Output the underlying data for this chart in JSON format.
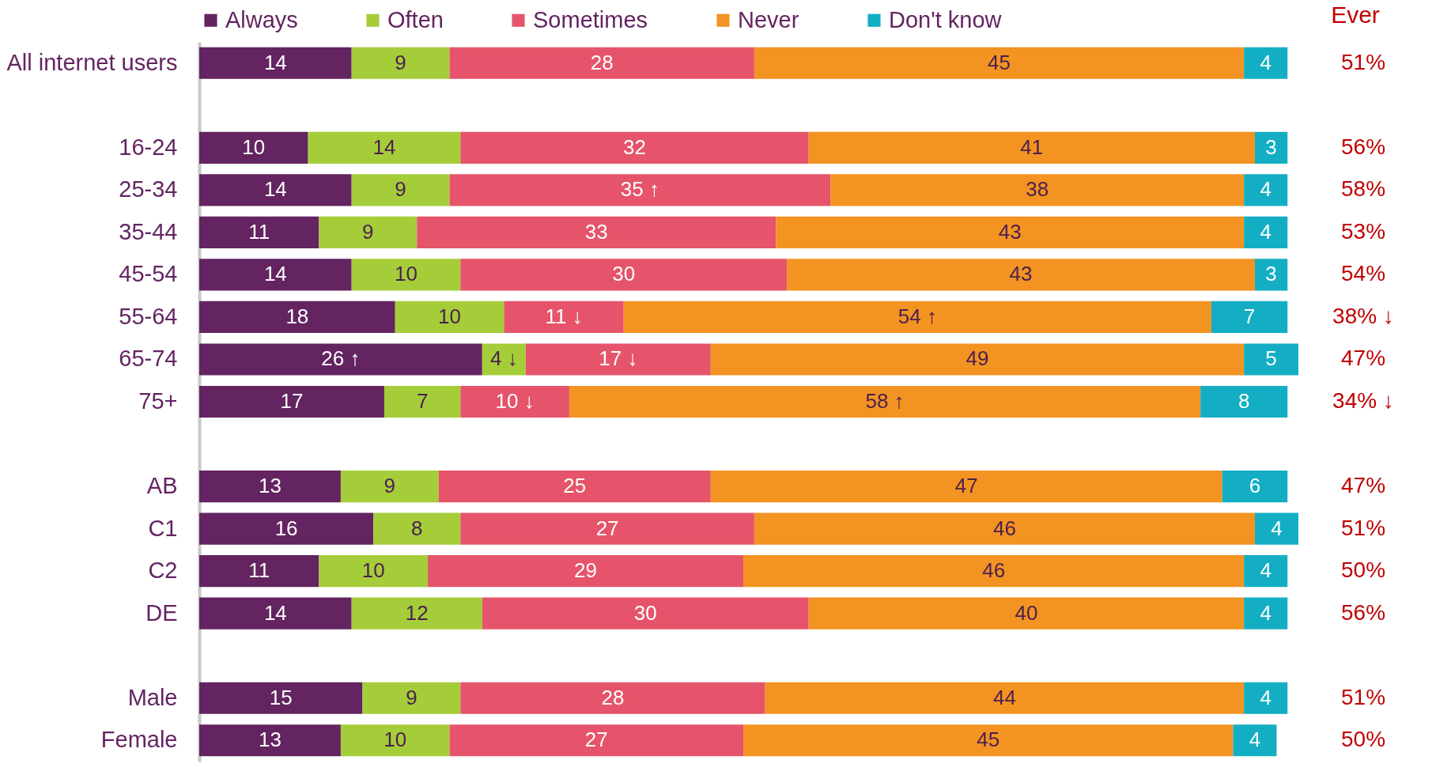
{
  "chart_data": {
    "type": "bar",
    "orientation": "horizontal",
    "stacked": true,
    "legend": "top",
    "tick_labels": "y",
    "xlim": [
      0,
      101
    ],
    "categories": [
      "All internet users",
      null,
      "16-24",
      "25-34",
      "35-44",
      "45-54",
      "55-64",
      "65-74",
      "75+",
      null,
      "AB",
      "C1",
      "C2",
      "DE",
      null,
      "Male",
      "Female"
    ],
    "series": [
      {
        "name": "Always",
        "color": "#632461",
        "values": [
          14,
          null,
          10,
          14,
          11,
          14,
          18,
          26,
          17,
          null,
          13,
          16,
          11,
          14,
          null,
          15,
          13
        ],
        "value_labels": [
          "14",
          null,
          "10",
          "14",
          "11",
          "14",
          "18",
          "26 ↑",
          "17",
          null,
          "13",
          "16",
          "11",
          "14",
          null,
          "15",
          "13"
        ]
      },
      {
        "name": "Often",
        "color": "#a5cd39",
        "values": [
          9,
          null,
          14,
          9,
          9,
          10,
          10,
          4,
          7,
          null,
          9,
          8,
          10,
          12,
          null,
          9,
          10
        ],
        "value_labels": [
          "9",
          null,
          "14",
          "9",
          "9",
          "10",
          "10",
          "4 ↓",
          "7",
          null,
          "9",
          "8",
          "10",
          "12",
          null,
          "9",
          "10"
        ]
      },
      {
        "name": "Sometimes",
        "color": "#e5546a",
        "values": [
          28,
          null,
          32,
          35,
          33,
          30,
          11,
          17,
          10,
          null,
          25,
          27,
          29,
          30,
          null,
          28,
          27
        ],
        "value_labels": [
          "28",
          null,
          "32",
          "35 ↑",
          "33",
          "30",
          "11 ↓",
          "17 ↓",
          "10 ↓",
          null,
          "25",
          "27",
          "29",
          "30",
          null,
          "28",
          "27"
        ]
      },
      {
        "name": "Never",
        "color": "#f39322",
        "values": [
          45,
          null,
          41,
          38,
          43,
          43,
          54,
          49,
          58,
          null,
          47,
          46,
          46,
          40,
          null,
          44,
          45
        ],
        "value_labels": [
          "45",
          null,
          "41",
          "38",
          "43",
          "43",
          "54 ↑",
          "49",
          "58 ↑",
          null,
          "47",
          "46",
          "46",
          "40",
          null,
          "44",
          "45"
        ]
      },
      {
        "name": "Don't know",
        "color": "#13aec3",
        "values": [
          4,
          null,
          3,
          4,
          4,
          3,
          7,
          5,
          8,
          null,
          6,
          4,
          4,
          4,
          null,
          4,
          4
        ],
        "value_labels": [
          "4",
          null,
          "3",
          "4",
          "4",
          "3",
          "7",
          "5",
          "8",
          null,
          "6",
          "4",
          "4",
          "4",
          null,
          "4",
          "4"
        ]
      }
    ],
    "annotations": [
      "Ever",
      "51%",
      "56%",
      "58%",
      "53%",
      "54%",
      "38% ↓",
      "47%",
      "34% ↓",
      "47%",
      "51%",
      "50%",
      "56%",
      "51%",
      "50%"
    ]
  }
}
